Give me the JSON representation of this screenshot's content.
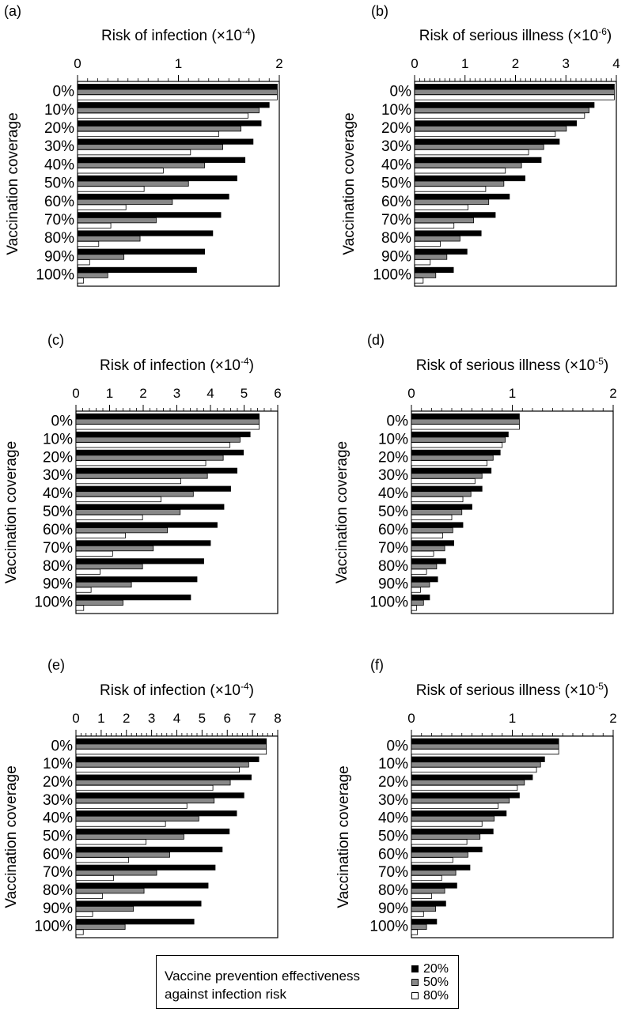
{
  "chart_data": [
    {
      "panel": "(a)",
      "type": "bar",
      "orientation": "horizontal",
      "title_text": "Risk of infection (",
      "title_mult": "×10",
      "title_exp": "-4",
      "title_close": ")",
      "ylabel": "Vaccination coverage",
      "categories": [
        "0%",
        "10%",
        "20%",
        "30%",
        "40%",
        "50%",
        "60%",
        "70%",
        "80%",
        "90%",
        "100%"
      ],
      "xlim": [
        0,
        2
      ],
      "xticks": [
        0,
        1,
        2
      ],
      "minor_per_major": 10,
      "series": [
        {
          "name": "20%",
          "values": [
            1.98,
            1.9,
            1.82,
            1.74,
            1.66,
            1.58,
            1.5,
            1.42,
            1.34,
            1.26,
            1.18
          ]
        },
        {
          "name": "50%",
          "values": [
            1.98,
            1.8,
            1.62,
            1.44,
            1.26,
            1.1,
            0.94,
            0.78,
            0.62,
            0.46,
            0.3
          ]
        },
        {
          "name": "80%",
          "values": [
            1.98,
            1.69,
            1.4,
            1.12,
            0.85,
            0.66,
            0.48,
            0.33,
            0.21,
            0.12,
            0.06
          ]
        }
      ]
    },
    {
      "panel": "(b)",
      "type": "bar",
      "orientation": "horizontal",
      "title_text": "Risk of serious illness (",
      "title_mult": "×10",
      "title_exp": "-6",
      "title_close": ")",
      "ylabel": "Vaccination coverage",
      "categories": [
        "0%",
        "10%",
        "20%",
        "30%",
        "40%",
        "50%",
        "60%",
        "70%",
        "80%",
        "90%",
        "100%"
      ],
      "xlim": [
        0,
        4
      ],
      "xticks": [
        0,
        1,
        2,
        3,
        4
      ],
      "minor_per_major": 10,
      "series": [
        {
          "name": "20%",
          "values": [
            3.96,
            3.56,
            3.21,
            2.87,
            2.51,
            2.19,
            1.88,
            1.6,
            1.32,
            1.04,
            0.77
          ]
        },
        {
          "name": "50%",
          "values": [
            3.96,
            3.46,
            3.01,
            2.56,
            2.12,
            1.77,
            1.47,
            1.17,
            0.9,
            0.64,
            0.42
          ]
        },
        {
          "name": "80%",
          "values": [
            3.96,
            3.37,
            2.79,
            2.26,
            1.8,
            1.41,
            1.06,
            0.78,
            0.51,
            0.31,
            0.17
          ]
        }
      ]
    },
    {
      "panel": "(c)",
      "type": "bar",
      "orientation": "horizontal",
      "title_text": "Risk of infection (",
      "title_mult": "×10",
      "title_exp": "-4",
      "title_close": ")",
      "ylabel": "Vaccination coverage",
      "categories": [
        "0%",
        "10%",
        "20%",
        "30%",
        "40%",
        "50%",
        "60%",
        "70%",
        "80%",
        "90%",
        "100%"
      ],
      "xlim": [
        0,
        6
      ],
      "xticks": [
        0,
        1,
        2,
        3,
        4,
        5,
        6
      ],
      "minor_per_major": 5,
      "series": [
        {
          "name": "20%",
          "values": [
            5.45,
            5.18,
            4.98,
            4.79,
            4.6,
            4.4,
            4.2,
            4.0,
            3.8,
            3.6,
            3.41
          ]
        },
        {
          "name": "50%",
          "values": [
            5.45,
            4.88,
            4.38,
            3.91,
            3.49,
            3.1,
            2.72,
            2.3,
            1.98,
            1.65,
            1.4
          ]
        },
        {
          "name": "80%",
          "values": [
            5.45,
            4.58,
            3.86,
            3.12,
            2.53,
            1.98,
            1.47,
            1.09,
            0.72,
            0.45,
            0.23
          ]
        }
      ]
    },
    {
      "panel": "(d)",
      "type": "bar",
      "orientation": "horizontal",
      "title_text": "Risk of serious illness (",
      "title_mult": "×10",
      "title_exp": "-5",
      "title_close": ")",
      "ylabel": "Vaccination coverage",
      "categories": [
        "0%",
        "10%",
        "20%",
        "30%",
        "40%",
        "50%",
        "60%",
        "70%",
        "80%",
        "90%",
        "100%"
      ],
      "xlim": [
        0,
        2
      ],
      "xticks": [
        0,
        1,
        2
      ],
      "minor_per_major": 10,
      "series": [
        {
          "name": "20%",
          "values": [
            1.07,
            0.96,
            0.88,
            0.79,
            0.7,
            0.6,
            0.51,
            0.42,
            0.34,
            0.26,
            0.18
          ]
        },
        {
          "name": "50%",
          "values": [
            1.07,
            0.93,
            0.81,
            0.7,
            0.59,
            0.5,
            0.41,
            0.33,
            0.25,
            0.18,
            0.12
          ]
        },
        {
          "name": "80%",
          "values": [
            1.07,
            0.9,
            0.75,
            0.63,
            0.51,
            0.4,
            0.31,
            0.22,
            0.15,
            0.09,
            0.05
          ]
        }
      ]
    },
    {
      "panel": "(e)",
      "type": "bar",
      "orientation": "horizontal",
      "title_text": "Risk of infection (",
      "title_mult": "×10",
      "title_exp": "-4",
      "title_close": ")",
      "ylabel": "Vaccination coverage",
      "categories": [
        "0%",
        "10%",
        "20%",
        "30%",
        "40%",
        "50%",
        "60%",
        "70%",
        "80%",
        "90%",
        "100%"
      ],
      "xlim": [
        0,
        8
      ],
      "xticks": [
        0,
        1,
        2,
        3,
        4,
        5,
        6,
        7,
        8
      ],
      "minor_per_major": 5,
      "series": [
        {
          "name": "20%",
          "values": [
            7.55,
            7.25,
            6.95,
            6.66,
            6.37,
            6.08,
            5.8,
            5.52,
            5.24,
            4.96,
            4.68
          ]
        },
        {
          "name": "50%",
          "values": [
            7.55,
            6.85,
            6.12,
            5.48,
            4.87,
            4.28,
            3.72,
            3.2,
            2.7,
            2.28,
            1.95
          ]
        },
        {
          "name": "80%",
          "values": [
            7.55,
            6.48,
            5.43,
            4.4,
            3.55,
            2.78,
            2.09,
            1.49,
            1.05,
            0.66,
            0.29
          ]
        }
      ]
    },
    {
      "panel": "(f)",
      "type": "bar",
      "orientation": "horizontal",
      "title_text": "Risk of serious illness (",
      "title_mult": "×10",
      "title_exp": "-5",
      "title_close": ")",
      "ylabel": "Vaccination coverage",
      "categories": [
        "0%",
        "10%",
        "20%",
        "30%",
        "40%",
        "50%",
        "60%",
        "70%",
        "80%",
        "90%",
        "100%"
      ],
      "xlim": [
        0,
        2
      ],
      "xticks": [
        0,
        1,
        2
      ],
      "minor_per_major": 10,
      "series": [
        {
          "name": "20%",
          "values": [
            1.46,
            1.32,
            1.2,
            1.07,
            0.94,
            0.81,
            0.7,
            0.58,
            0.45,
            0.34,
            0.25
          ]
        },
        {
          "name": "50%",
          "values": [
            1.46,
            1.28,
            1.12,
            0.97,
            0.82,
            0.68,
            0.56,
            0.44,
            0.33,
            0.24,
            0.15
          ]
        },
        {
          "name": "80%",
          "values": [
            1.46,
            1.24,
            1.05,
            0.86,
            0.7,
            0.55,
            0.41,
            0.3,
            0.2,
            0.12,
            0.06
          ]
        }
      ]
    }
  ],
  "legend": {
    "title_line1": "Vaccine prevention effectiveness",
    "title_line2": "against infection risk",
    "items": [
      {
        "label": "20%",
        "color": "#000000"
      },
      {
        "label": "50%",
        "color": "#888888"
      },
      {
        "label": "80%",
        "color": "#ffffff"
      }
    ]
  },
  "colors": {
    "s20": "#000000",
    "s50": "#888888",
    "s80": "#ffffff"
  }
}
